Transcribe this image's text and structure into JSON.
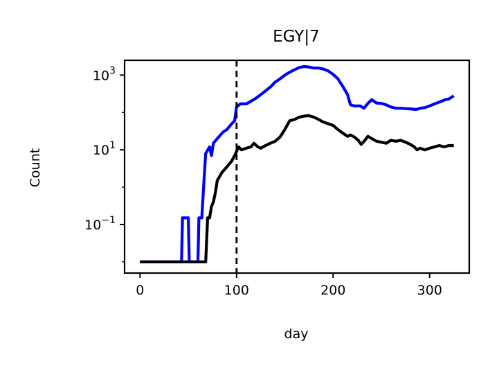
{
  "chart_data": {
    "type": "line",
    "title": "EGY|7",
    "xlabel": "day",
    "ylabel": "Count",
    "xlim": [
      -16,
      341
    ],
    "ylim": [
      0.005,
      2500
    ],
    "yscale": "log",
    "grid": false,
    "xticks": [
      0,
      100,
      200,
      300
    ],
    "xtick_labels": [
      "0",
      "100",
      "200",
      "300"
    ],
    "yticks": [
      0.1,
      10,
      1000
    ],
    "ytick_labels": [
      {
        "base": "10",
        "exp": "−1"
      },
      {
        "base": "10",
        "exp": "1"
      },
      {
        "base": "10",
        "exp": "3"
      }
    ],
    "vline": {
      "x": 100,
      "style": "dashed",
      "color": "#000000"
    },
    "series": [
      {
        "color": "#0000ff",
        "points": [
          [
            0,
            0.01
          ],
          [
            43,
            0.01
          ],
          [
            44,
            0.15
          ],
          [
            50,
            0.15
          ],
          [
            51,
            0.01
          ],
          [
            60,
            0.01
          ],
          [
            61,
            0.15
          ],
          [
            64,
            0.15
          ],
          [
            66,
            1.2
          ],
          [
            68,
            8
          ],
          [
            72,
            12
          ],
          [
            74,
            7
          ],
          [
            76,
            15
          ],
          [
            80,
            20
          ],
          [
            86,
            30
          ],
          [
            90,
            35
          ],
          [
            95,
            50
          ],
          [
            98,
            60
          ],
          [
            100,
            140
          ],
          [
            104,
            170
          ],
          [
            110,
            170
          ],
          [
            115,
            200
          ],
          [
            120,
            240
          ],
          [
            125,
            300
          ],
          [
            130,
            380
          ],
          [
            135,
            480
          ],
          [
            140,
            650
          ],
          [
            145,
            800
          ],
          [
            150,
            1000
          ],
          [
            155,
            1200
          ],
          [
            160,
            1400
          ],
          [
            165,
            1600
          ],
          [
            170,
            1700
          ],
          [
            175,
            1650
          ],
          [
            180,
            1550
          ],
          [
            185,
            1550
          ],
          [
            190,
            1450
          ],
          [
            195,
            1300
          ],
          [
            200,
            1050
          ],
          [
            205,
            800
          ],
          [
            210,
            500
          ],
          [
            215,
            300
          ],
          [
            218,
            160
          ],
          [
            222,
            150
          ],
          [
            228,
            150
          ],
          [
            232,
            130
          ],
          [
            236,
            175
          ],
          [
            240,
            220
          ],
          [
            245,
            180
          ],
          [
            250,
            175
          ],
          [
            255,
            160
          ],
          [
            260,
            140
          ],
          [
            265,
            130
          ],
          [
            270,
            130
          ],
          [
            280,
            125
          ],
          [
            286,
            120
          ],
          [
            290,
            130
          ],
          [
            295,
            135
          ],
          [
            300,
            150
          ],
          [
            305,
            170
          ],
          [
            310,
            190
          ],
          [
            316,
            220
          ],
          [
            320,
            230
          ],
          [
            325,
            280
          ]
        ]
      },
      {
        "color": "#000000",
        "points": [
          [
            0,
            0.01
          ],
          [
            65,
            0.01
          ],
          [
            68,
            0.01
          ],
          [
            70,
            0.15
          ],
          [
            72,
            0.15
          ],
          [
            74,
            0.3
          ],
          [
            76,
            0.4
          ],
          [
            78,
            0.7
          ],
          [
            80,
            1.5
          ],
          [
            85,
            2.5
          ],
          [
            90,
            3.5
          ],
          [
            95,
            5
          ],
          [
            98,
            7
          ],
          [
            100,
            9
          ],
          [
            102,
            12
          ],
          [
            105,
            10
          ],
          [
            110,
            11
          ],
          [
            115,
            12
          ],
          [
            118,
            15
          ],
          [
            122,
            12
          ],
          [
            125,
            11
          ],
          [
            130,
            13
          ],
          [
            135,
            15
          ],
          [
            140,
            17
          ],
          [
            145,
            22
          ],
          [
            150,
            35
          ],
          [
            155,
            60
          ],
          [
            160,
            65
          ],
          [
            165,
            75
          ],
          [
            170,
            80
          ],
          [
            175,
            82
          ],
          [
            180,
            75
          ],
          [
            185,
            65
          ],
          [
            190,
            55
          ],
          [
            195,
            50
          ],
          [
            200,
            45
          ],
          [
            205,
            35
          ],
          [
            210,
            28
          ],
          [
            215,
            23
          ],
          [
            218,
            25
          ],
          [
            222,
            22
          ],
          [
            226,
            18
          ],
          [
            229,
            14
          ],
          [
            233,
            18
          ],
          [
            236,
            23
          ],
          [
            240,
            20
          ],
          [
            245,
            17
          ],
          [
            250,
            16
          ],
          [
            255,
            15
          ],
          [
            260,
            18
          ],
          [
            265,
            17
          ],
          [
            270,
            18
          ],
          [
            275,
            16
          ],
          [
            280,
            14
          ],
          [
            284,
            12
          ],
          [
            287,
            10
          ],
          [
            290,
            11
          ],
          [
            295,
            10
          ],
          [
            300,
            11
          ],
          [
            305,
            12
          ],
          [
            310,
            13
          ],
          [
            315,
            12
          ],
          [
            320,
            13
          ],
          [
            325,
            13
          ]
        ]
      }
    ]
  }
}
